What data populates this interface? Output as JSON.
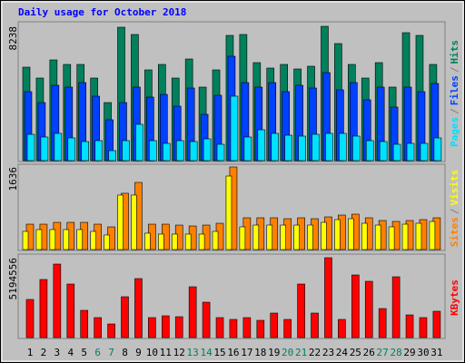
{
  "chart_data": [
    {
      "type": "bar",
      "title": "Daily usage for October 2018",
      "ylim": [
        0,
        8238
      ],
      "yticks": [
        8238
      ],
      "grid": false,
      "legend_separator": "/",
      "series": [
        {
          "name": "Pages",
          "color": "#00e0ff",
          "values": [
            1614,
            1447,
            1670,
            1392,
            1169,
            1225,
            612,
            1225,
            2226,
            1225,
            1058,
            1225,
            1169,
            1336,
            1002,
            3952,
            1447,
            1892,
            1670,
            1558,
            1503,
            1614,
            1670,
            1670,
            1503,
            1225,
            1169,
            1002,
            1058,
            1058,
            1392
          ]
        },
        {
          "name": "Files",
          "color": "#0040ff",
          "values": [
            4230,
            3562,
            4620,
            4509,
            4787,
            3952,
            2505,
            3562,
            4509,
            3896,
            4063,
            3340,
            4453,
            2839,
            4008,
            6401,
            4787,
            4509,
            4787,
            4230,
            4620,
            4453,
            5399,
            4342,
            4787,
            3729,
            4509,
            3284,
            4509,
            4230,
            4731
          ]
        },
        {
          "name": "Hits",
          "color": "#00805c",
          "values": [
            5733,
            5065,
            6178,
            5900,
            5900,
            5065,
            3562,
            8182,
            7737,
            5566,
            5900,
            5065,
            6234,
            4509,
            5566,
            7681,
            7737,
            6011,
            5677,
            5900,
            5622,
            5789,
            8238,
            7180,
            5900,
            5065,
            6011,
            4509,
            7848,
            7681,
            5900
          ]
        }
      ]
    },
    {
      "type": "bar",
      "ylim": [
        0,
        1636
      ],
      "yticks": [
        1636
      ],
      "grid": false,
      "legend_separator": "/",
      "series": [
        {
          "name": "Sites",
          "color": "#ff8000",
          "values": [
            503,
            503,
            539,
            539,
            539,
            503,
            449,
            1115,
            1330,
            503,
            503,
            485,
            467,
            485,
            521,
            1636,
            629,
            629,
            629,
            611,
            629,
            611,
            647,
            683,
            701,
            629,
            575,
            557,
            575,
            593,
            629
          ]
        },
        {
          "name": "Visits",
          "color": "#ffff00",
          "values": [
            360,
            396,
            396,
            396,
            396,
            360,
            288,
            1079,
            1079,
            324,
            306,
            306,
            306,
            306,
            360,
            1456,
            450,
            485,
            485,
            485,
            485,
            485,
            539,
            593,
            611,
            521,
            485,
            450,
            503,
            521,
            557
          ]
        }
      ]
    },
    {
      "type": "bar",
      "ylim": [
        0,
        5194556
      ],
      "yticks": [
        5194556
      ],
      "grid": false,
      "categories": [
        "1",
        "2",
        "3",
        "4",
        "5",
        "6",
        "7",
        "8",
        "9",
        "10",
        "11",
        "12",
        "13",
        "14",
        "15",
        "16",
        "17",
        "18",
        "19",
        "20",
        "21",
        "22",
        "23",
        "24",
        "25",
        "26",
        "27",
        "28",
        "29",
        "30",
        "31"
      ],
      "category_colors": [
        "#000000",
        "#000000",
        "#000000",
        "#000000",
        "#000000",
        "#00805c",
        "#00805c",
        "#000000",
        "#000000",
        "#000000",
        "#000000",
        "#000000",
        "#00805c",
        "#00805c",
        "#000000",
        "#000000",
        "#000000",
        "#000000",
        "#000000",
        "#00805c",
        "#00805c",
        "#000000",
        "#000000",
        "#000000",
        "#000000",
        "#000000",
        "#00805c",
        "#00805c",
        "#000000",
        "#000000",
        "#000000"
      ],
      "series": [
        {
          "name": "KBytes",
          "color": "#ff0000",
          "values": [
            2479218,
            3777856,
            4781349,
            3482711,
            1770870,
            1298638,
            885435,
            2656305,
            3836885,
            1298638,
            1416696,
            1357667,
            3305624,
            2302131,
            1298638,
            1180580,
            1298638,
            1121551,
            1593783,
            1180580,
            3482711,
            1593783,
            5194556,
            1180580,
            4073001,
            3659798,
            1888928,
            3954943,
            1475725,
            1298638,
            1711841
          ]
        }
      ]
    }
  ]
}
